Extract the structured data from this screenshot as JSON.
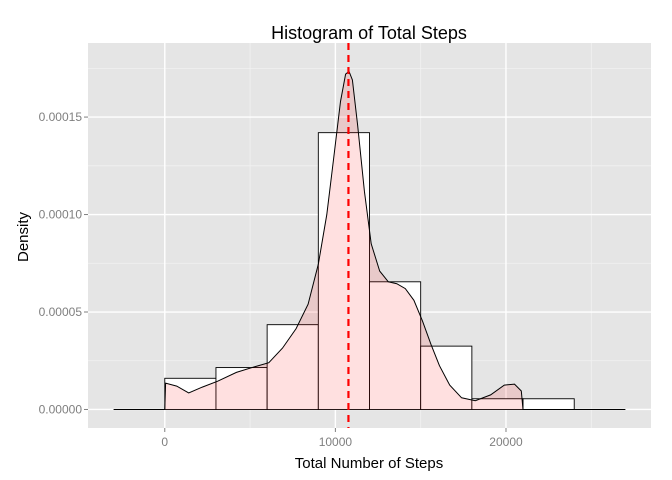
{
  "chart_data": {
    "type": "histogram",
    "title": "Histogram of Total Steps",
    "xlabel": "Total Number of Steps",
    "ylabel": "Density",
    "xlim": [
      -4500,
      28500
    ],
    "ylim": [
      -9.5e-06,
      0.000188
    ],
    "x_ticks": [
      0,
      10000,
      20000
    ],
    "x_tick_labels": [
      "0",
      "10000",
      "20000"
    ],
    "y_ticks": [
      0,
      5e-05,
      0.0001,
      0.00015
    ],
    "y_tick_labels": [
      "0.00000",
      "0.00005",
      "0.00010",
      "0.00015"
    ],
    "grid": true,
    "bins": [
      {
        "x0": 0,
        "x1": 3000,
        "density": 1.6e-05
      },
      {
        "x0": 3000,
        "x1": 6000,
        "density": 2.15e-05
      },
      {
        "x0": 6000,
        "x1": 9000,
        "density": 4.35e-05
      },
      {
        "x0": 9000,
        "x1": 12000,
        "density": 0.000142
      },
      {
        "x0": 12000,
        "x1": 15000,
        "density": 6.55e-05
      },
      {
        "x0": 15000,
        "x1": 18000,
        "density": 3.25e-05
      },
      {
        "x0": 18000,
        "x1": 21000,
        "density": 5.5e-06
      },
      {
        "x0": 21000,
        "x1": 24000,
        "density": 5.5e-06
      }
    ],
    "density_curve": {
      "x": [
        -3000,
        0,
        50,
        700,
        1400,
        2200,
        3100,
        4200,
        5300,
        6100,
        6900,
        7700,
        8400,
        9000,
        9500,
        9900,
        10300,
        10600,
        10800,
        11000,
        11300,
        11700,
        12100,
        12600,
        13100,
        13600,
        14100,
        14600,
        15100,
        15600,
        16100,
        16700,
        17400,
        18200,
        19100,
        19900,
        20500,
        20900,
        21000,
        27000
      ],
      "y": [
        0,
        0,
        1.35e-05,
        1.2e-05,
        8.5e-06,
        1.15e-05,
        1.45e-05,
        1.9e-05,
        2.2e-05,
        2.4e-05,
        3.15e-05,
        4.15e-05,
        5.4e-05,
        7.45e-05,
        0.0001,
        0.000129,
        0.000158,
        0.000172,
        0.0001735,
        0.000169,
        0.000146,
        0.000112,
        8.5e-05,
        7.1e-05,
        6.55e-05,
        6.45e-05,
        6.2e-05,
        5.6e-05,
        4.55e-05,
        3.35e-05,
        2.25e-05,
        1.25e-05,
        6e-06,
        4.5e-06,
        7.5e-06,
        1.25e-05,
        1.3e-05,
        9.5e-06,
        0,
        0
      ]
    },
    "mean_line": {
      "x": 10766,
      "color": "#ff0000",
      "style": "dashed"
    },
    "colors": {
      "panel_background": "#e5e5e5",
      "grid_major": "#ffffff",
      "grid_minor": "#f2f2f2",
      "bar_fill": "#ffffff",
      "bar_stroke": "#000000",
      "density_fill": "#ff0000",
      "density_stroke": "#000000"
    }
  }
}
